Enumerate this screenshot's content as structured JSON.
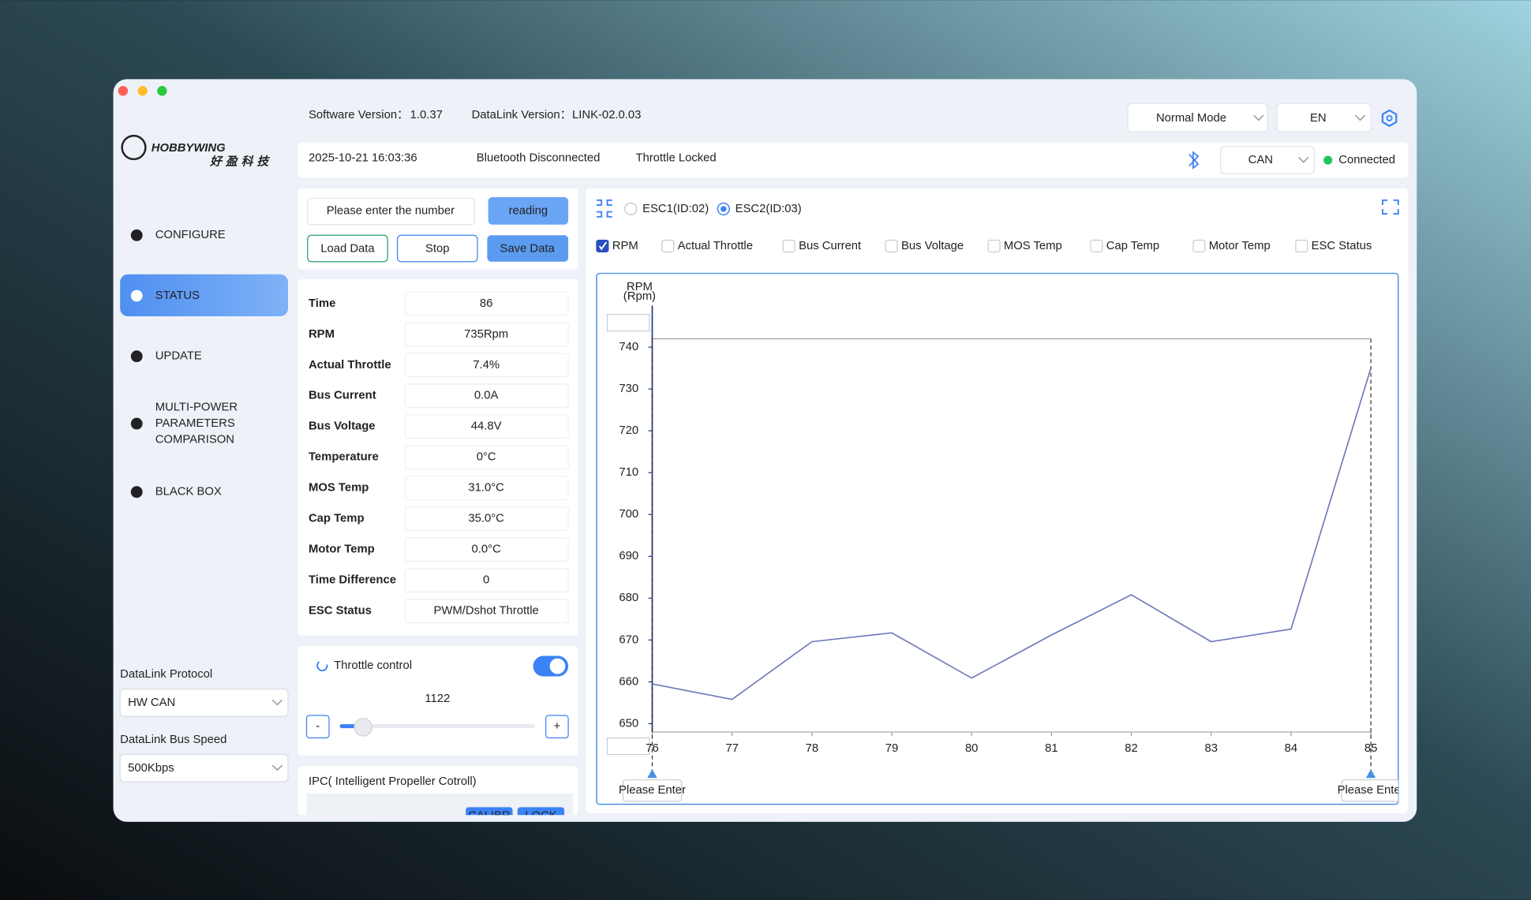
{
  "header": {
    "software_version_label": "Software Version：",
    "software_version": "1.0.37",
    "datalink_version_label": "DataLink Version：",
    "datalink_version": "LINK-02.0.03",
    "mode": "Normal Mode",
    "language": "EN",
    "datetime": "2025-10-21 16:03:36",
    "bluetooth": "Bluetooth Disconnected",
    "throttle": "Throttle Locked",
    "bus": "CAN",
    "connection": "Connected"
  },
  "logo": {
    "brand": "HOBBYWING",
    "chinese": "好盈科技"
  },
  "sidebar": {
    "items": [
      [
        "CONFIGURE"
      ],
      [
        "STATUS"
      ],
      [
        "UPDATE"
      ],
      [
        "MULTI-POWER",
        "PARAMETERS",
        "COMPARISON"
      ],
      [
        "BLACK BOX"
      ]
    ]
  },
  "protocol": {
    "label": "DataLink Protocol",
    "value": "HW CAN"
  },
  "bus_speed": {
    "label": "DataLink Bus Speed",
    "value": "500Kbps"
  },
  "controls": {
    "input_placeholder": "Please enter the number",
    "reading": "reading",
    "load": "Load Data",
    "stop": "Stop",
    "save": "Save Data"
  },
  "status_table": [
    [
      "Time",
      "86"
    ],
    [
      "RPM",
      "735Rpm"
    ],
    [
      "Actual Throttle",
      "7.4%"
    ],
    [
      "Bus Current",
      "0.0A"
    ],
    [
      "Bus Voltage",
      "44.8V"
    ],
    [
      "Temperature",
      "0°C"
    ],
    [
      "MOS Temp",
      "31.0°C"
    ],
    [
      "Cap Temp",
      "35.0°C"
    ],
    [
      "Motor Temp",
      "0.0°C"
    ],
    [
      "Time Difference",
      "0"
    ],
    [
      "ESC Status",
      "PWM/Dshot Throttle"
    ]
  ],
  "throttle_control": {
    "label": "Throttle control",
    "value": "1122",
    "minus": "-",
    "plus": "+"
  },
  "ipc": {
    "label": "IPC( Intelligent Propeller Cotroll)",
    "buttons": [
      "CALIBR",
      "LOCK"
    ]
  },
  "esc_select": [
    "ESC1(ID:02)",
    "ESC2(ID:03)"
  ],
  "channels": [
    {
      "name": "RPM",
      "color": "#2b4fbf",
      "checked": true
    },
    {
      "name": "Actual Throttle",
      "color": "#1fa463",
      "checked": false
    },
    {
      "name": "Bus Current",
      "color": "#d9b400",
      "checked": false
    },
    {
      "name": "Bus Voltage",
      "color": "#55359c",
      "checked": false
    },
    {
      "name": "MOS Temp",
      "color": "#c2379b",
      "checked": false
    },
    {
      "name": "Cap Temp",
      "color": "#d2691e",
      "checked": false
    },
    {
      "name": "Motor Temp",
      "color": "#b3202a",
      "checked": false
    },
    {
      "name": "ESC Status",
      "color": "#1e94d2",
      "checked": false
    }
  ],
  "chart": {
    "type": "line",
    "y_label": [
      "RPM",
      "(Rpm)"
    ],
    "x": [
      76,
      77,
      78,
      79,
      80,
      81,
      82,
      83,
      84,
      84.2,
      85
    ],
    "values": [
      659.5,
      655.8,
      669.6,
      671.7,
      660.9,
      671.2,
      680.8,
      669.6,
      672.6,
      685,
      735
    ],
    "color": "#6a76b8",
    "xlim": [
      76,
      85
    ],
    "xticks": [
      76,
      77,
      78,
      79,
      80,
      81,
      82,
      83,
      84,
      85
    ],
    "ylim": [
      648,
      742
    ],
    "yticks": [
      650,
      660,
      670,
      680,
      690,
      700,
      710,
      720,
      730,
      740
    ],
    "marker_placeholder": "Please Enter"
  }
}
